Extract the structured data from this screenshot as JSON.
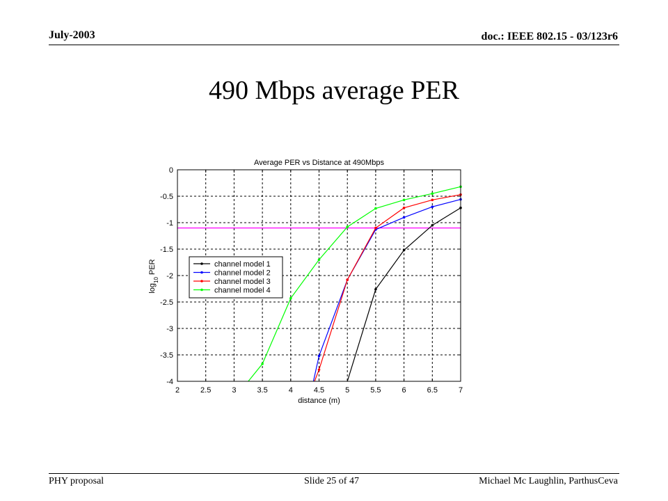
{
  "header": {
    "date": "July-2003",
    "doc": "doc.: IEEE 802.15 - 03/123r6"
  },
  "slide": {
    "title": "490 Mbps average PER"
  },
  "footer": {
    "left": "PHY proposal",
    "center": "Slide 25 of 47",
    "right": "Michael Mc Laughlin, ParthusCeva"
  },
  "chart_data": {
    "type": "line",
    "title": "Average PER vs Distance at 490Mbps",
    "xlabel": "distance (m)",
    "ylabel_base": "log",
    "ylabel_sub": "10",
    "ylabel_rest": " PER",
    "xlim": [
      2,
      7
    ],
    "ylim": [
      -4,
      0
    ],
    "xticks": [
      2,
      2.5,
      3,
      3.5,
      4,
      4.5,
      5,
      5.5,
      6,
      6.5,
      7
    ],
    "xtick_labels": [
      "2",
      "2.5",
      "3",
      "3.5",
      "4",
      "4.5",
      "5",
      "5.5",
      "6",
      "6.5",
      "7"
    ],
    "yticks": [
      0,
      -0.5,
      -1,
      -1.5,
      -2,
      -2.5,
      -3,
      -3.5,
      -4
    ],
    "ytick_labels": [
      "0",
      "-0.5",
      "-1",
      "-1.5",
      "-2",
      "-2.5",
      "-3",
      "-3.5",
      "-4"
    ],
    "grid": true,
    "legend_position": "middle-left",
    "reference_line": {
      "y": -1.1,
      "color": "#ff00ff"
    },
    "series": [
      {
        "name": "channel model 1",
        "color": "#000000",
        "x": [
          5.0,
          5.5,
          6.0,
          6.5,
          7.0
        ],
        "y": [
          -4.0,
          -2.26,
          -1.52,
          -1.05,
          -0.72
        ]
      },
      {
        "name": "channel model 2",
        "color": "#0000ff",
        "x": [
          4.4,
          4.5,
          5.0,
          5.5,
          6.0,
          6.5,
          7.0
        ],
        "y": [
          -4.0,
          -3.52,
          -2.08,
          -1.13,
          -0.9,
          -0.7,
          -0.56
        ]
      },
      {
        "name": "channel model 3",
        "color": "#ff0000",
        "x": [
          4.42,
          4.5,
          5.0,
          5.5,
          6.0,
          6.5,
          7.0
        ],
        "y": [
          -4.0,
          -3.78,
          -2.08,
          -1.1,
          -0.72,
          -0.57,
          -0.47
        ]
      },
      {
        "name": "channel model 4",
        "color": "#00ff00",
        "x": [
          3.25,
          3.5,
          4.0,
          4.5,
          5.0,
          5.5,
          6.0,
          6.5,
          7.0
        ],
        "y": [
          -4.0,
          -3.67,
          -2.43,
          -1.7,
          -1.08,
          -0.73,
          -0.57,
          -0.45,
          -0.32
        ]
      }
    ]
  }
}
